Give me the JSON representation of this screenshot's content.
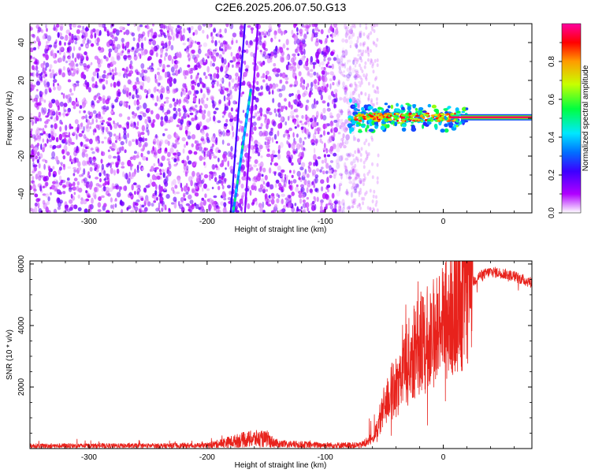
{
  "figure": {
    "title": "C2E6.2025.206.07.50.G13"
  },
  "chart_data": [
    {
      "type": "heatmap",
      "xlabel": "Height of straight line (km)",
      "ylabel": "Frequency (Hz)",
      "xlim": [
        -350,
        75
      ],
      "ylim": [
        -50,
        50
      ],
      "x_ticks": [
        -300,
        -200,
        -100,
        0
      ],
      "y_ticks": [
        -40,
        -20,
        0,
        20,
        40
      ],
      "colorbar": {
        "label": "Normalized spectral amplitude",
        "range": [
          0,
          1
        ],
        "ticks": [
          0.0,
          0.2,
          0.4,
          0.6,
          0.8
        ],
        "colormap": [
          "#ffffff",
          "#b000ff",
          "#3c00ff",
          "#0070ff",
          "#00e8ff",
          "#00ff40",
          "#c8ff00",
          "#ff9c00",
          "#ff0000",
          "#ff00a0"
        ]
      },
      "features": [
        {
          "name": "noise region",
          "x_range": [
            -350,
            -70
          ],
          "freq_range": [
            -50,
            50
          ],
          "amplitude": 0.1
        },
        {
          "name": "line A",
          "x": [
            -180,
            -168
          ],
          "freq": [
            -50,
            50
          ],
          "amplitude": 0.22
        },
        {
          "name": "line B",
          "x": [
            -178,
            -163
          ],
          "freq": [
            -50,
            15
          ],
          "amplitude": 0.35
        },
        {
          "name": "line C",
          "x": [
            -168,
            -157
          ],
          "freq": [
            -50,
            50
          ],
          "amplitude": 0.15
        },
        {
          "name": "carrier",
          "x_range": [
            -80,
            75
          ],
          "freq": 0.5,
          "amplitude": 0.95
        }
      ]
    },
    {
      "type": "line",
      "xlabel": "Height of straight line (km)",
      "ylabel": "SNR (10 * v/v)",
      "xlim": [
        -350,
        75
      ],
      "ylim": [
        0,
        6100
      ],
      "x_ticks": [
        -300,
        -200,
        -100,
        0
      ],
      "y_ticks": [
        2000,
        4000,
        6000
      ],
      "color": "#e8221c",
      "series": [
        {
          "x": [
            -350,
            -300,
            -250,
            -200,
            -170,
            -160,
            -150,
            -140,
            -100,
            -70,
            -60,
            -55,
            -50,
            -45,
            -40,
            -30,
            -20,
            -10,
            0,
            10,
            20,
            30,
            40,
            50,
            60,
            70,
            75
          ],
          "values": [
            90,
            90,
            90,
            100,
            280,
            320,
            300,
            150,
            110,
            110,
            300,
            700,
            1400,
            1800,
            2000,
            2800,
            3400,
            3700,
            4100,
            4600,
            5200,
            5600,
            5750,
            5700,
            5600,
            5450,
            5400
          ]
        }
      ]
    }
  ]
}
